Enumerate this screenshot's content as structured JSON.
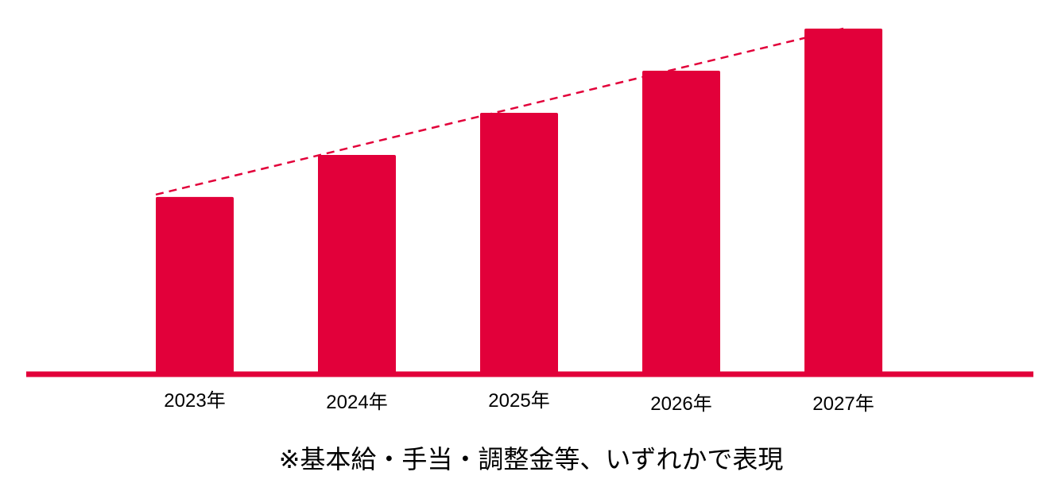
{
  "chart_data": {
    "type": "bar",
    "categories": [
      "2023年",
      "2024年",
      "2025年",
      "2026年",
      "2027年"
    ],
    "values": [
      54,
      67,
      80,
      93,
      106
    ],
    "ylim": [
      0,
      106
    ],
    "title": "",
    "xlabel": "",
    "ylabel": "",
    "grid": false,
    "trend_line": "dashed",
    "bar_color": "#e2003a",
    "baseline_color": "#e2003a",
    "trend_color": "#e2003a"
  },
  "footnote": "※基本給・手当・調整金等、いずれかで表現"
}
